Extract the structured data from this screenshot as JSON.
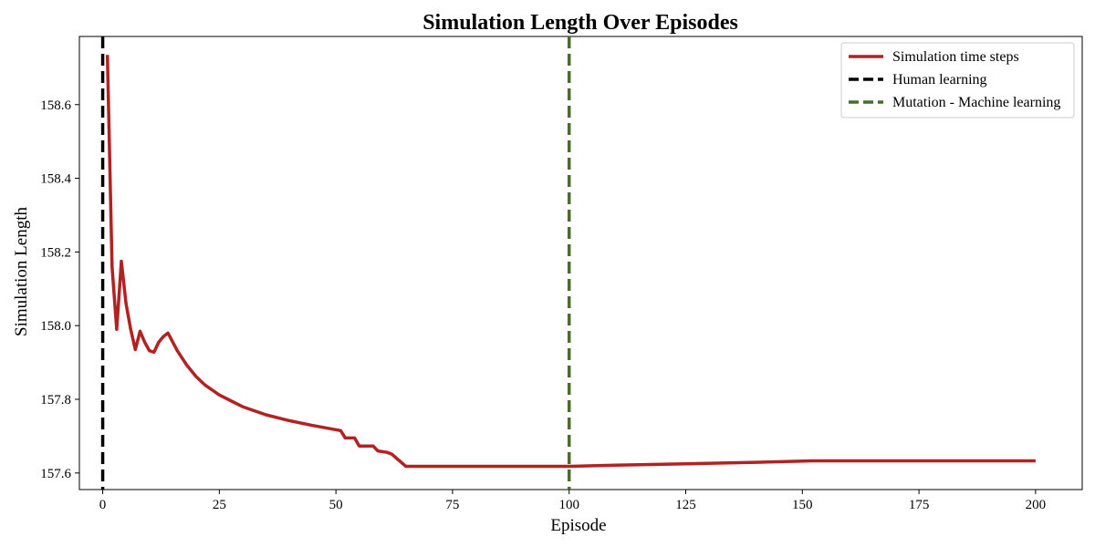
{
  "chart_data": {
    "type": "line",
    "title": "Simulation Length Over Episodes",
    "xlabel": "Episode",
    "ylabel": "Simulation Length",
    "xlim": [
      -5,
      210
    ],
    "ylim": [
      157.555,
      158.785
    ],
    "xticks": [
      0,
      25,
      50,
      75,
      100,
      125,
      150,
      175,
      200
    ],
    "yticks": [
      157.6,
      157.8,
      158.0,
      158.2,
      158.4,
      158.6
    ],
    "ytick_labels": [
      "157.6",
      "157.8",
      "158.0",
      "158.2",
      "158.4",
      "158.6"
    ],
    "grid": false,
    "legend_position": "top-right",
    "series": [
      {
        "name": "Simulation time steps",
        "color": "#b22222",
        "style": "solid",
        "x": [
          1,
          2,
          3,
          4,
          5,
          6,
          7,
          8,
          9,
          10,
          11,
          12,
          13,
          14,
          16,
          18,
          20,
          22,
          25,
          30,
          35,
          40,
          45,
          51,
          52,
          54,
          55,
          58,
          59,
          61,
          62,
          63,
          65,
          75,
          100,
          110,
          125,
          140,
          152,
          175,
          200
        ],
        "y": [
          158.735,
          158.16,
          157.99,
          158.175,
          158.06,
          157.99,
          157.935,
          157.985,
          157.955,
          157.932,
          157.928,
          157.955,
          157.97,
          157.98,
          157.932,
          157.893,
          157.862,
          157.838,
          157.812,
          157.78,
          157.758,
          157.742,
          157.729,
          157.715,
          157.695,
          157.695,
          157.673,
          157.673,
          157.66,
          157.656,
          157.651,
          157.64,
          157.618,
          157.618,
          157.618,
          157.621,
          157.625,
          157.629,
          157.633,
          157.633,
          157.633
        ]
      }
    ],
    "vlines": [
      {
        "name": "Human learning",
        "x": 0,
        "color": "#000000",
        "style": "dashed"
      },
      {
        "name": "Mutation - Machine learning",
        "x": 100,
        "color": "#4d6b2e",
        "style": "dashed"
      }
    ]
  }
}
